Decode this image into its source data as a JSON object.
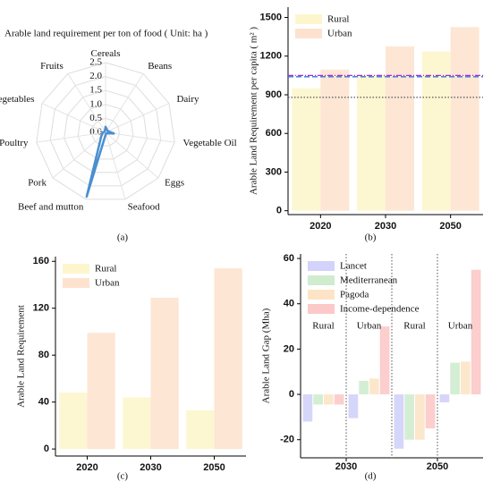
{
  "chart_data": [
    {
      "type": "radar",
      "title": "Arable land requirement per ton of food ( Unit: ha )",
      "caption": "(a)",
      "categories": [
        "Cereals",
        "Beans",
        "Dairy",
        "Vegetable Oil",
        "Eggs",
        "Seafood",
        "Beef and mutton",
        "Pork",
        "Poultry",
        "Vegetables",
        "Fruits"
      ],
      "values": [
        0.2,
        0.1,
        0.1,
        0.3,
        0.05,
        0.05,
        2.4,
        0.2,
        0.1,
        0.05,
        0.05
      ],
      "color": "#4a8fd0",
      "rlim": [
        0,
        2.5
      ],
      "rticks": [
        {
          "value": 0,
          "label": "0.0"
        },
        0.5,
        {
          "value": 1,
          "label": "1.0"
        },
        1.5,
        {
          "value": 2,
          "label": "2.0"
        },
        2.5
      ]
    },
    {
      "type": "bar",
      "caption": "(b)",
      "ylabel": "Arable Land Requirement per capita ( m² )",
      "categories": [
        "2020",
        "2030",
        "2050"
      ],
      "series": [
        {
          "name": "Rural",
          "color": "#fdf6cc",
          "values": [
            950,
            1055,
            1235
          ]
        },
        {
          "name": "Urban",
          "color": "#fde3cf",
          "values": [
            1095,
            1275,
            1425
          ]
        }
      ],
      "ylim": [
        -30,
        1580
      ],
      "yticks": [
        0,
        300,
        600,
        900,
        1200,
        1500
      ],
      "reference_lines": [
        {
          "value": 1040,
          "color": "#3b6fd8",
          "style": "dashed"
        },
        {
          "value": 1050,
          "color": "#9b30d9",
          "style": "dashdot"
        },
        {
          "value": 880,
          "color": "#555555",
          "style": "dotted"
        }
      ],
      "legend": "upper left"
    },
    {
      "type": "bar",
      "caption": "(c)",
      "ylabel": "Arable Land Requirement",
      "categories": [
        "2020",
        "2030",
        "2050"
      ],
      "series": [
        {
          "name": "Rural",
          "color": "#fdf6cc",
          "values": [
            48,
            44,
            33
          ]
        },
        {
          "name": "Urban",
          "color": "#fde3cf",
          "values": [
            99,
            129,
            154
          ]
        }
      ],
      "ylim": [
        -6,
        164
      ],
      "yticks": [
        0,
        40,
        80,
        120,
        160
      ],
      "legend": "upper left"
    },
    {
      "type": "bar",
      "caption": "(d)",
      "ylabel": "Arable Land Gap (Mha)",
      "categories": [
        "Rural",
        "Urban",
        "Rural",
        "Urban"
      ],
      "group_labels": [
        "2030",
        "2050"
      ],
      "series": [
        {
          "name": "Lancet",
          "color": "#d2d2fa",
          "values": [
            -12,
            -10.5,
            -24,
            -3.5
          ]
        },
        {
          "name": "Mediterranean",
          "color": "#cfeccf",
          "values": [
            -4.5,
            6,
            -20,
            14
          ]
        },
        {
          "name": "Pagoda",
          "color": "#fde4c6",
          "values": [
            -4.5,
            7,
            -20,
            14.5
          ]
        },
        {
          "name": "Income-dependence",
          "color": "#fcc9c9",
          "values": [
            -4.5,
            30,
            -15,
            55
          ]
        }
      ],
      "ylim": [
        -28,
        62
      ],
      "yticks": [
        -20,
        0,
        20,
        40,
        60
      ],
      "legend": "upper left"
    }
  ]
}
